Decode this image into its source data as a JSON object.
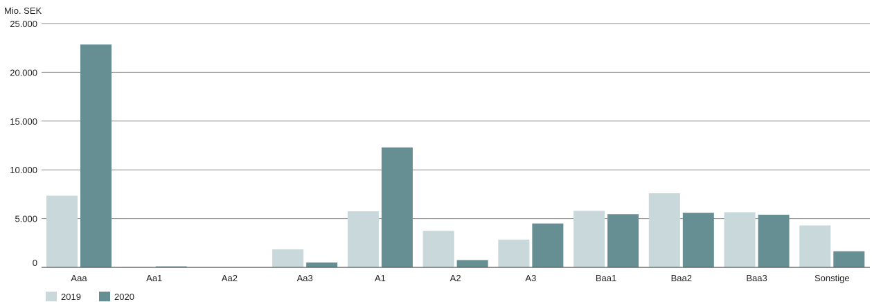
{
  "chart_data": {
    "type": "bar",
    "ylabel": "Mio. SEK",
    "ylim": [
      0,
      25000
    ],
    "yticks": [
      0,
      5000,
      10000,
      15000,
      20000,
      25000
    ],
    "ytick_labels": [
      "0",
      "5.000",
      "10.000",
      "15.000",
      "20.000",
      "25.000"
    ],
    "categories": [
      "Aaa",
      "Aa1",
      "Aa2",
      "Aa3",
      "A1",
      "A2",
      "A3",
      "Baa1",
      "Baa2",
      "Baa3",
      "Sonstige"
    ],
    "series": [
      {
        "name": "2019",
        "color": "#c9d8da",
        "values": [
          7350,
          60,
          0,
          1850,
          5750,
          3750,
          2850,
          5800,
          7600,
          5650,
          4300
        ]
      },
      {
        "name": "2020",
        "color": "#668f94",
        "values": [
          22850,
          100,
          0,
          500,
          12300,
          750,
          4500,
          5450,
          5600,
          5400,
          1650
        ]
      }
    ],
    "grid": true,
    "legend_position": "bottom-left"
  }
}
